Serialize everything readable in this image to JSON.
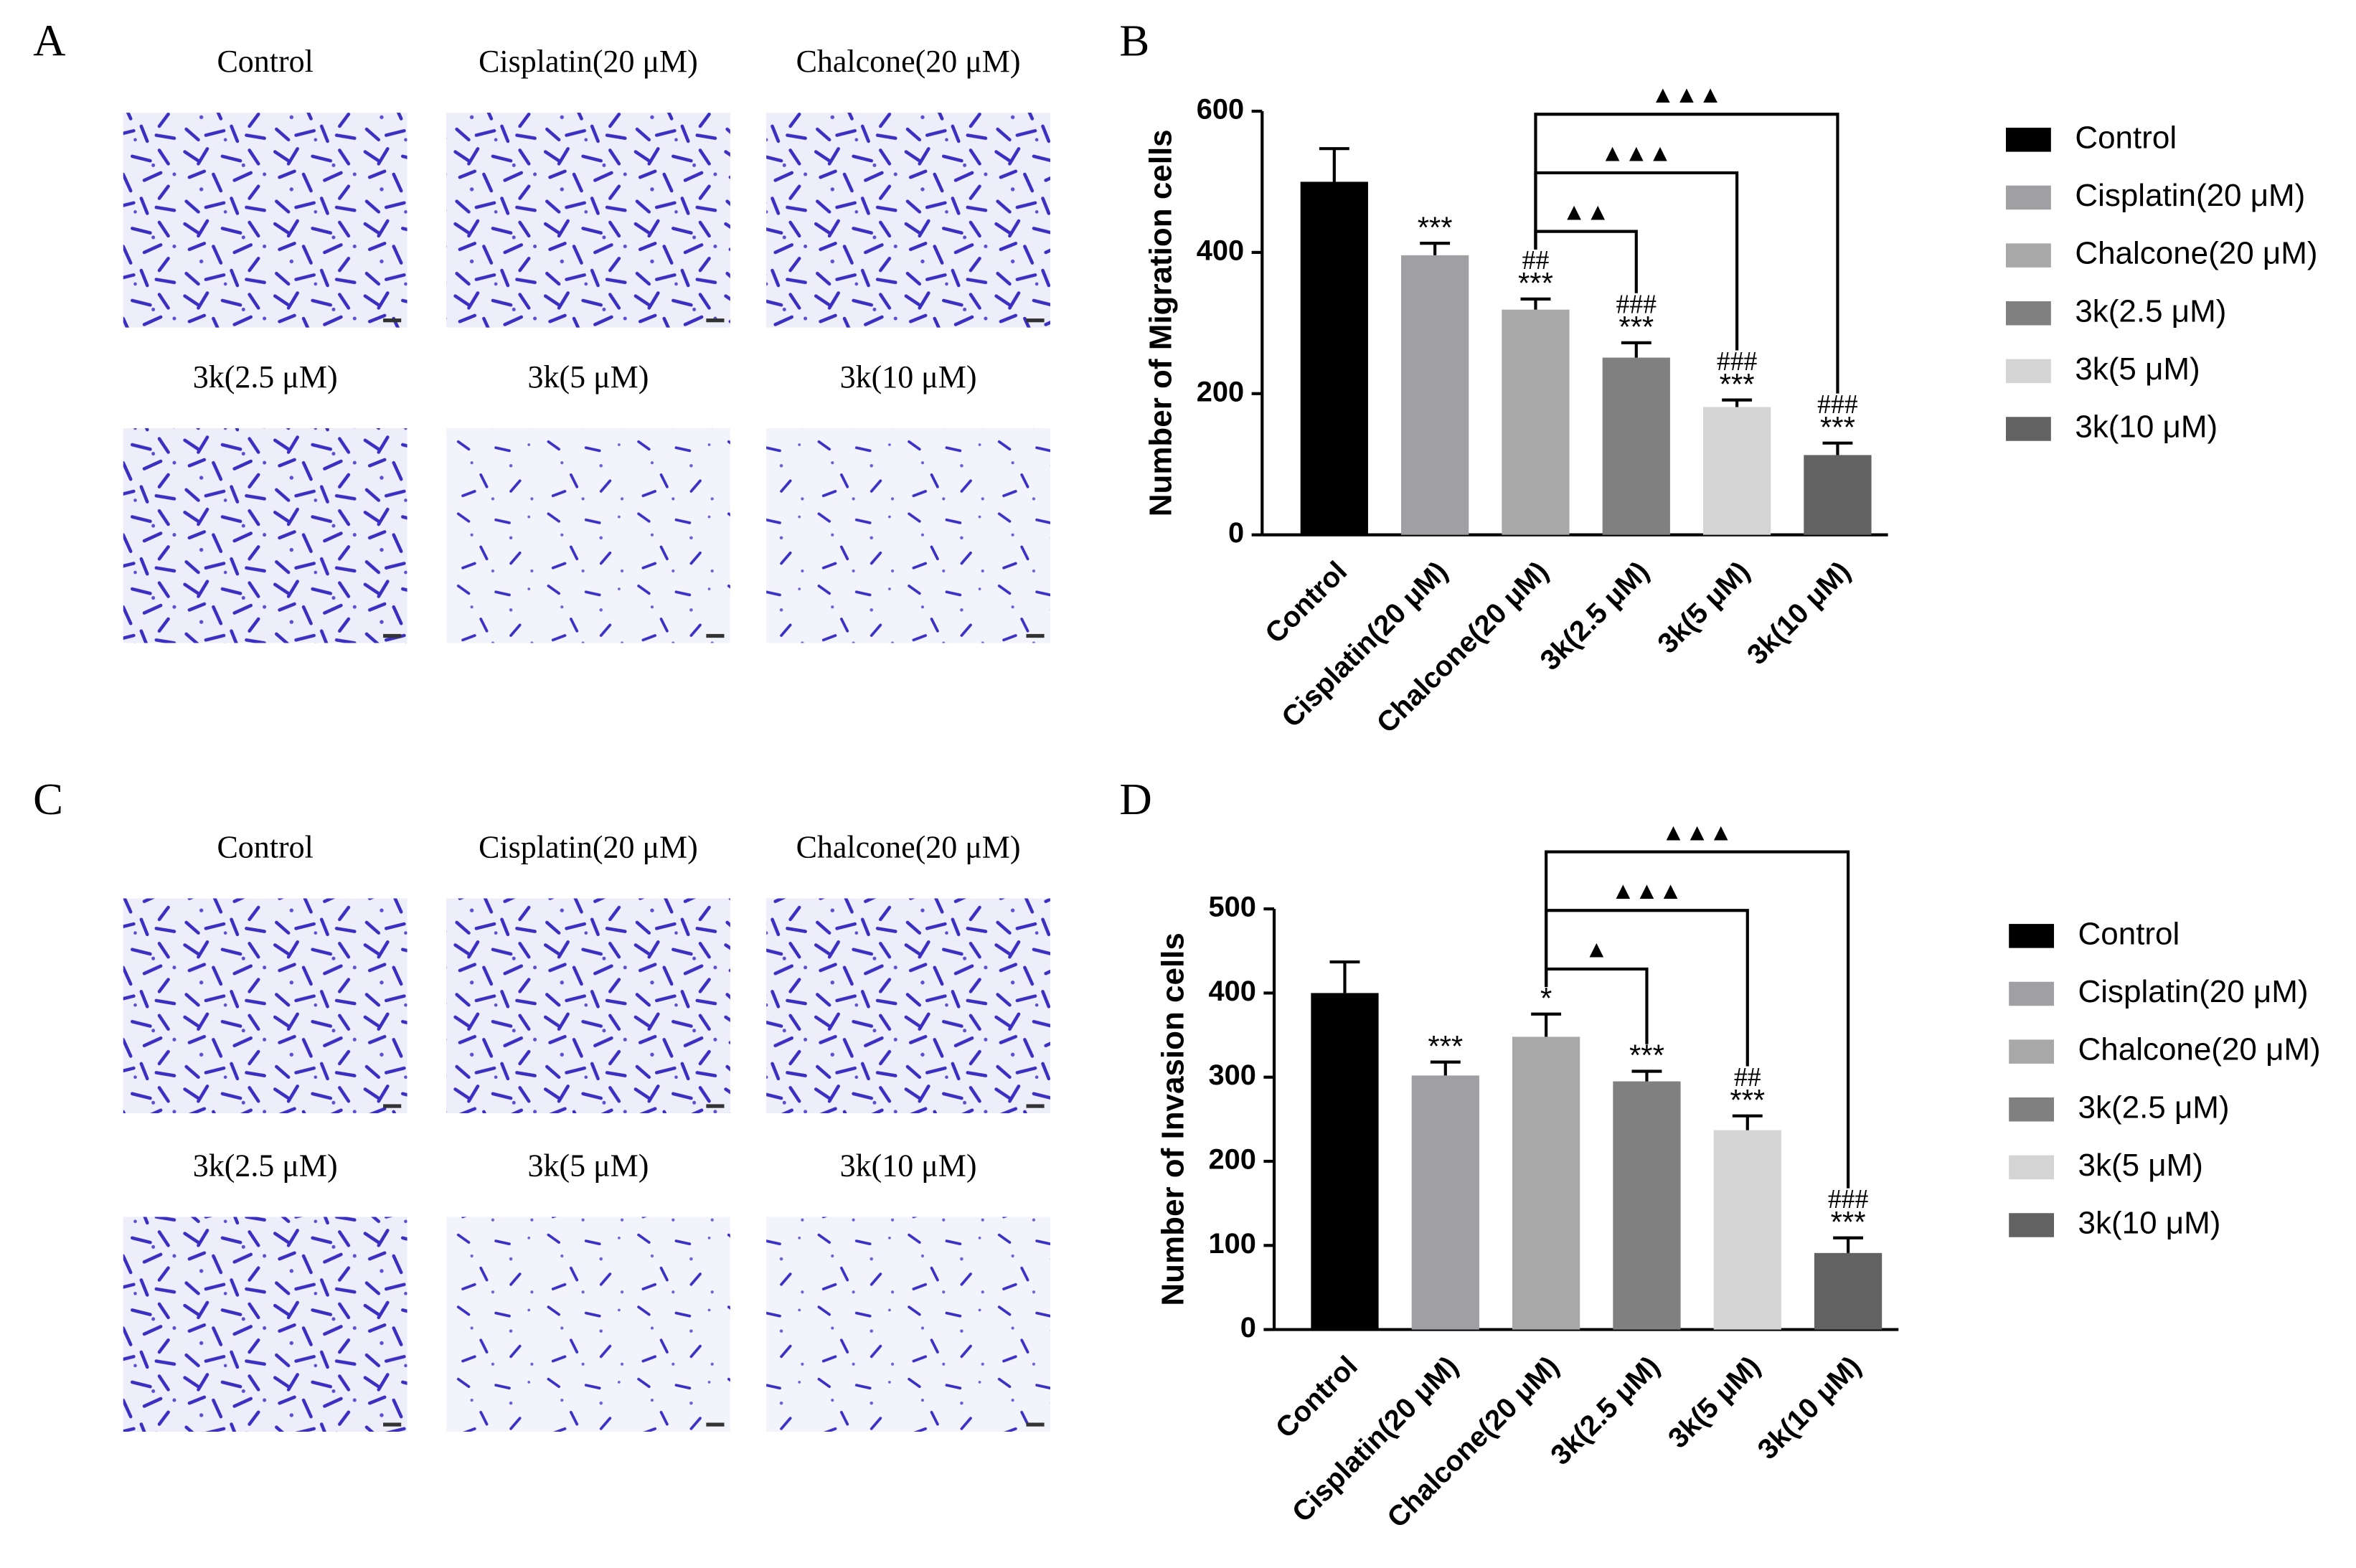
{
  "panels": [
    {
      "label": "A",
      "images": [
        "Control",
        "Cisplatin(20 μM)",
        "Chalcone(20 μM)",
        "3k(2.5 μM)",
        "3k(5 μM)",
        "3k(10 μM)"
      ]
    },
    {
      "label": "C",
      "images": [
        "Control",
        "Cisplatin(20 μM)",
        "Chalcone(20 μM)",
        "3k(2.5 μM)",
        "3k(5 μM)",
        "3k(10 μM)"
      ]
    }
  ],
  "chart_data": [
    {
      "type": "bar",
      "panel_label": "B",
      "y_label": "Number of Migration cells",
      "categories": [
        "Control",
        "Cisplatin(20 μM)",
        "Chalcone(20 μM)",
        "3k(2.5 μM)",
        "3k(5 μM)",
        "3k(10 μM)"
      ],
      "values": [
        500,
        396,
        319,
        251,
        181,
        113
      ],
      "errors": [
        47,
        17,
        15,
        21,
        10,
        17
      ],
      "colors": [
        "#000000",
        "#a0a0a4",
        "#a8a8a8",
        "#808080",
        "#d4d4d4",
        "#626262"
      ],
      "annotations": [
        null,
        [
          "***"
        ],
        [
          "##",
          "***"
        ],
        [
          "###",
          "***"
        ],
        [
          "###",
          "***"
        ],
        [
          "###",
          "***"
        ]
      ],
      "comparisons": [
        {
          "from": 2,
          "to": 3,
          "label": "▲▲"
        },
        {
          "from": 2,
          "to": 4,
          "label": "▲▲▲"
        },
        {
          "from": 2,
          "to": 5,
          "label": "▲▲▲"
        }
      ],
      "ylim": [
        0,
        600
      ],
      "yticks": [
        0,
        200,
        400,
        600
      ]
    },
    {
      "type": "bar",
      "panel_label": "D",
      "y_label": "Number of Invasion cells",
      "categories": [
        "Control",
        "Cisplatin(20 μM)",
        "Chalcone(20 μM)",
        "3k(2.5 μM)",
        "3k(5 μM)",
        "3k(10 μM)"
      ],
      "values": [
        400,
        302,
        348,
        295,
        237,
        91
      ],
      "errors": [
        37,
        16,
        27,
        12,
        17,
        18
      ],
      "colors": [
        "#000000",
        "#a0a0a4",
        "#a8a8a8",
        "#808080",
        "#d4d4d4",
        "#626262"
      ],
      "annotations": [
        null,
        [
          "***"
        ],
        [
          "*"
        ],
        [
          "***"
        ],
        [
          "##",
          "***"
        ],
        [
          "###",
          "***"
        ]
      ],
      "comparisons": [
        {
          "from": 2,
          "to": 3,
          "label": "▲"
        },
        {
          "from": 2,
          "to": 4,
          "label": "▲▲▲"
        },
        {
          "from": 2,
          "to": 5,
          "label": "▲▲▲"
        }
      ],
      "ylim": [
        0,
        500
      ],
      "yticks": [
        0,
        100,
        200,
        300,
        400,
        500
      ]
    }
  ]
}
